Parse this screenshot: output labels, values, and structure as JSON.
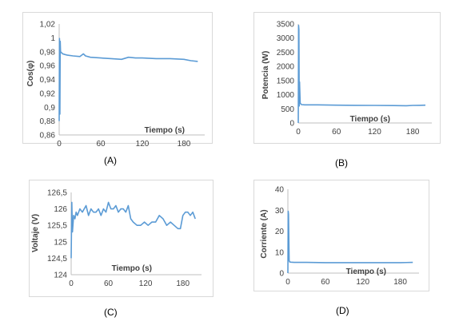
{
  "chart_data": [
    {
      "type": "line",
      "caption": "(A)",
      "xlabel": "Tiempo (s)",
      "ylabel": "Cos(φ)",
      "xlim": [
        0,
        210
      ],
      "ylim": [
        0.86,
        1.02
      ],
      "xticks": [
        "0",
        "60",
        "120",
        "180"
      ],
      "xtick_values": [
        0,
        60,
        120,
        180
      ],
      "yticks": [
        "0,86",
        "0,88",
        "0,9",
        "0,92",
        "0,94",
        "0,96",
        "0,98",
        "1",
        "1,02"
      ],
      "ytick_values": [
        0.86,
        0.88,
        0.9,
        0.92,
        0.94,
        0.96,
        0.98,
        1.0,
        1.02
      ],
      "color": "#5b9bd5",
      "series": [
        {
          "x": [
            0,
            0.5,
            1,
            1.5,
            2,
            3,
            5,
            8,
            12,
            20,
            30,
            35,
            38,
            45,
            60,
            75,
            90,
            100,
            110,
            120,
            140,
            160,
            180,
            190,
            200
          ],
          "y": [
            0.88,
            0.999,
            0.89,
            0.995,
            0.98,
            0.979,
            0.977,
            0.976,
            0.975,
            0.974,
            0.973,
            0.977,
            0.974,
            0.972,
            0.971,
            0.97,
            0.969,
            0.972,
            0.971,
            0.971,
            0.97,
            0.97,
            0.969,
            0.967,
            0.966
          ]
        }
      ]
    },
    {
      "type": "line",
      "caption": "(B)",
      "xlabel": "Tiempo (s)",
      "ylabel": "Potencia (W)",
      "xlim": [
        0,
        210
      ],
      "ylim": [
        0,
        3500
      ],
      "xticks": [
        "0",
        "60",
        "120",
        "180"
      ],
      "xtick_values": [
        0,
        60,
        120,
        180
      ],
      "yticks": [
        "0",
        "500",
        "1000",
        "1500",
        "2000",
        "2500",
        "3000",
        "3500"
      ],
      "ytick_values": [
        0,
        500,
        1000,
        1500,
        2000,
        2500,
        3000,
        3500
      ],
      "color": "#5b9bd5",
      "series": [
        {
          "x": [
            0,
            0.5,
            1,
            1.5,
            2,
            3,
            5,
            10,
            30,
            60,
            90,
            120,
            150,
            170,
            180,
            190,
            200
          ],
          "y": [
            0,
            3450,
            3300,
            600,
            1450,
            700,
            650,
            640,
            640,
            630,
            625,
            620,
            615,
            610,
            620,
            625,
            630
          ]
        }
      ]
    },
    {
      "type": "line",
      "caption": "(C)",
      "xlabel": "Tiempo (s)",
      "ylabel": "Voltaje (V)",
      "xlim": [
        0,
        210
      ],
      "ylim": [
        124,
        126.5
      ],
      "xticks": [
        "0",
        "60",
        "120",
        "180"
      ],
      "xtick_values": [
        0,
        60,
        120,
        180
      ],
      "yticks": [
        "124",
        "124,5",
        "125",
        "125,5",
        "126",
        "126,5"
      ],
      "ytick_values": [
        124,
        124.5,
        125,
        125.5,
        126,
        126.5
      ],
      "color": "#5b9bd5",
      "series": [
        {
          "x": [
            0,
            1,
            2,
            4,
            6,
            8,
            10,
            14,
            18,
            24,
            28,
            32,
            36,
            40,
            44,
            48,
            52,
            56,
            60,
            64,
            68,
            72,
            76,
            80,
            84,
            88,
            92,
            96,
            100,
            106,
            112,
            118,
            124,
            130,
            136,
            142,
            148,
            154,
            160,
            166,
            172,
            176,
            180,
            184,
            188,
            192,
            196,
            200
          ],
          "y": [
            124.5,
            126.2,
            125.3,
            125.8,
            125.7,
            125.9,
            125.8,
            126.0,
            125.9,
            126.1,
            125.8,
            126.0,
            125.9,
            125.9,
            126.0,
            125.8,
            126.0,
            125.9,
            126.2,
            126.0,
            126.0,
            126.1,
            125.9,
            126.0,
            126.0,
            125.9,
            126.1,
            125.7,
            125.6,
            125.5,
            125.5,
            125.6,
            125.5,
            125.6,
            125.6,
            125.8,
            125.7,
            125.5,
            125.6,
            125.5,
            125.4,
            125.4,
            125.8,
            125.9,
            125.9,
            125.8,
            125.9,
            125.7
          ]
        }
      ]
    },
    {
      "type": "line",
      "caption": "(D)",
      "xlabel": "Tiempo (s)",
      "ylabel": "Corriente (A)",
      "xlim": [
        0,
        210
      ],
      "ylim": [
        0,
        40
      ],
      "xticks": [
        "0",
        "60",
        "120",
        "180"
      ],
      "xtick_values": [
        0,
        60,
        120,
        180
      ],
      "yticks": [
        "0",
        "10",
        "20",
        "30",
        "40"
      ],
      "ytick_values": [
        0,
        10,
        20,
        30,
        40
      ],
      "color": "#5b9bd5",
      "series": [
        {
          "x": [
            0,
            0.5,
            1,
            2,
            3,
            5,
            10,
            30,
            60,
            90,
            120,
            150,
            180,
            200
          ],
          "y": [
            0,
            29.5,
            28,
            6,
            5.3,
            5.2,
            5.1,
            5.1,
            5.0,
            5.0,
            5.0,
            5.0,
            5.0,
            5.1
          ]
        }
      ]
    }
  ]
}
